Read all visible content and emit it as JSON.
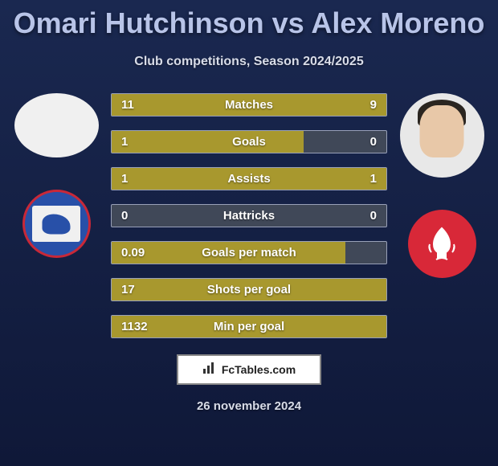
{
  "title": "Omari Hutchinson vs Alex Moreno",
  "subtitle": "Club competitions, Season 2024/2025",
  "footer_source": "FcTables.com",
  "footer_date": "26 november 2024",
  "colors": {
    "background_gradient_top": "#1a2850",
    "background_gradient_bottom": "#0f1838",
    "bar_fill": "#a8982e",
    "bar_empty": "#404858",
    "bar_border": "#98a0b8",
    "title_color": "#b8c4e8",
    "text_color": "#ffffff",
    "ipswich_blue": "#2850a8",
    "ipswich_red_border": "#c82838",
    "forest_red": "#d82838"
  },
  "player_left": {
    "name": "Omari Hutchinson",
    "club": "Ipswich Town"
  },
  "player_right": {
    "name": "Alex Moreno",
    "club": "Nottingham Forest"
  },
  "stats": [
    {
      "label": "Matches",
      "left_value": "11",
      "right_value": "9",
      "left_pct": 55,
      "right_pct": 45
    },
    {
      "label": "Goals",
      "left_value": "1",
      "right_value": "0",
      "left_pct": 70,
      "right_pct": 0
    },
    {
      "label": "Assists",
      "left_value": "1",
      "right_value": "1",
      "left_pct": 50,
      "right_pct": 50
    },
    {
      "label": "Hattricks",
      "left_value": "0",
      "right_value": "0",
      "left_pct": 0,
      "right_pct": 0
    },
    {
      "label": "Goals per match",
      "left_value": "0.09",
      "right_value": "",
      "left_pct": 85,
      "right_pct": 0
    },
    {
      "label": "Shots per goal",
      "left_value": "17",
      "right_value": "",
      "left_pct": 100,
      "right_pct": 0
    },
    {
      "label": "Min per goal",
      "left_value": "1132",
      "right_value": "",
      "left_pct": 100,
      "right_pct": 0
    }
  ]
}
